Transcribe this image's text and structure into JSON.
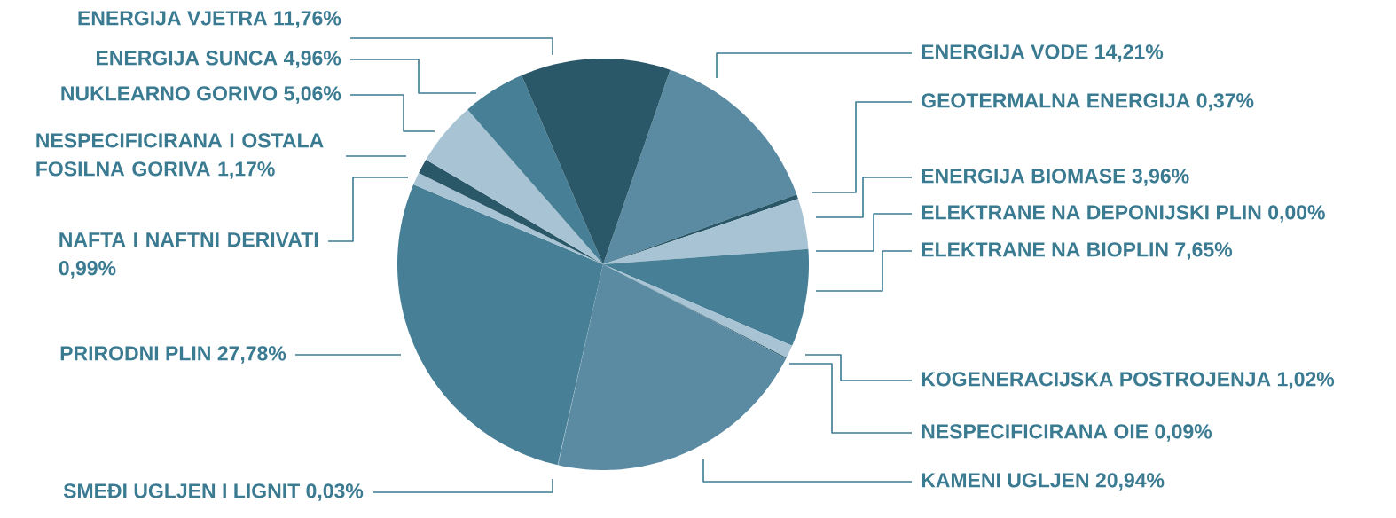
{
  "chart_data": {
    "type": "pie",
    "categories": [
      "ENERGIJA VODE",
      "GEOTERMALNA ENERGIJA",
      "ENERGIJA BIOMASE",
      "ELEKTRANE NA DEPONIJSKI PLIN",
      "ELEKTRANE NA BIOPLIN",
      "KOGENERACIJSKA POSTROJENJA",
      "NESPECIFICIRANA OIE",
      "KAMENI UGLJEN",
      "SMEĐI UGLJEN I LIGNIT",
      "PRIRODNI PLIN",
      "NAFTA I NAFTNI DERIVATI",
      "NESPECIFICIRANA I OSTALA FOSILNA GORIVA",
      "NUKLEARNO GORIVO",
      "ENERGIJA SUNCA",
      "ENERGIJA VJETRA"
    ],
    "values": [
      14.21,
      0.37,
      3.96,
      0.0,
      7.65,
      1.02,
      0.09,
      20.94,
      0.03,
      27.78,
      0.99,
      1.17,
      5.06,
      4.96,
      11.76
    ],
    "value_labels": [
      "14,21%",
      "0,37%",
      "3,96%",
      "0,00%",
      "7,65%",
      "1,02%",
      "0,09%",
      "20,94%",
      "0,03%",
      "27,78%",
      "0,99%",
      "1,17%",
      "5,06%",
      "4,96%",
      "11,76%"
    ],
    "colors": [
      "#5a8ba3",
      "#2a5868",
      "#a8c4d4",
      "#a8c4d4",
      "#467f96",
      "#a8c4d4",
      "#2a5868",
      "#5a8ba3",
      "#a8c4d4",
      "#467f96",
      "#a8c4d4",
      "#2a5868",
      "#a8c4d4",
      "#467f96",
      "#2a5868"
    ]
  }
}
